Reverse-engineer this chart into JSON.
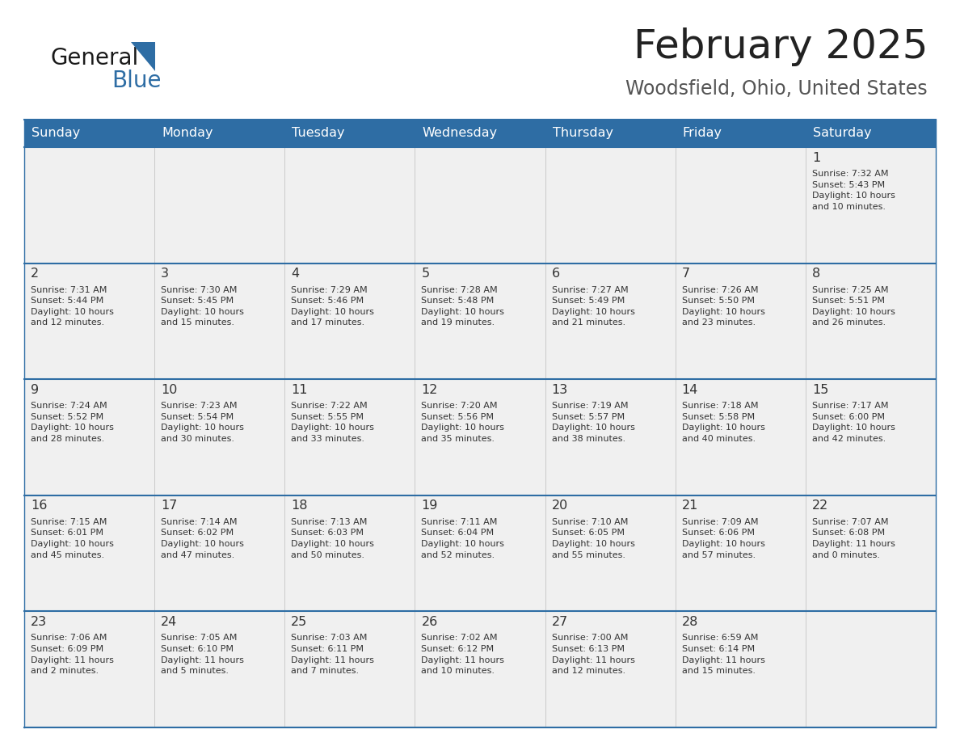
{
  "title": "February 2025",
  "subtitle": "Woodsfield, Ohio, United States",
  "days_of_week": [
    "Sunday",
    "Monday",
    "Tuesday",
    "Wednesday",
    "Thursday",
    "Friday",
    "Saturday"
  ],
  "header_bg": "#2E6DA4",
  "header_text": "#FFFFFF",
  "cell_bg": "#F0F0F0",
  "divider_color": "#2E6DA4",
  "cell_border_color": "#CCCCCC",
  "text_color": "#333333",
  "title_color": "#222222",
  "subtitle_color": "#555555",
  "logo_general_color": "#1a1a1a",
  "logo_blue_color": "#2E6DA4",
  "weeks": [
    [
      {
        "day": null,
        "info": null
      },
      {
        "day": null,
        "info": null
      },
      {
        "day": null,
        "info": null
      },
      {
        "day": null,
        "info": null
      },
      {
        "day": null,
        "info": null
      },
      {
        "day": null,
        "info": null
      },
      {
        "day": 1,
        "info": "Sunrise: 7:32 AM\nSunset: 5:43 PM\nDaylight: 10 hours\nand 10 minutes."
      }
    ],
    [
      {
        "day": 2,
        "info": "Sunrise: 7:31 AM\nSunset: 5:44 PM\nDaylight: 10 hours\nand 12 minutes."
      },
      {
        "day": 3,
        "info": "Sunrise: 7:30 AM\nSunset: 5:45 PM\nDaylight: 10 hours\nand 15 minutes."
      },
      {
        "day": 4,
        "info": "Sunrise: 7:29 AM\nSunset: 5:46 PM\nDaylight: 10 hours\nand 17 minutes."
      },
      {
        "day": 5,
        "info": "Sunrise: 7:28 AM\nSunset: 5:48 PM\nDaylight: 10 hours\nand 19 minutes."
      },
      {
        "day": 6,
        "info": "Sunrise: 7:27 AM\nSunset: 5:49 PM\nDaylight: 10 hours\nand 21 minutes."
      },
      {
        "day": 7,
        "info": "Sunrise: 7:26 AM\nSunset: 5:50 PM\nDaylight: 10 hours\nand 23 minutes."
      },
      {
        "day": 8,
        "info": "Sunrise: 7:25 AM\nSunset: 5:51 PM\nDaylight: 10 hours\nand 26 minutes."
      }
    ],
    [
      {
        "day": 9,
        "info": "Sunrise: 7:24 AM\nSunset: 5:52 PM\nDaylight: 10 hours\nand 28 minutes."
      },
      {
        "day": 10,
        "info": "Sunrise: 7:23 AM\nSunset: 5:54 PM\nDaylight: 10 hours\nand 30 minutes."
      },
      {
        "day": 11,
        "info": "Sunrise: 7:22 AM\nSunset: 5:55 PM\nDaylight: 10 hours\nand 33 minutes."
      },
      {
        "day": 12,
        "info": "Sunrise: 7:20 AM\nSunset: 5:56 PM\nDaylight: 10 hours\nand 35 minutes."
      },
      {
        "day": 13,
        "info": "Sunrise: 7:19 AM\nSunset: 5:57 PM\nDaylight: 10 hours\nand 38 minutes."
      },
      {
        "day": 14,
        "info": "Sunrise: 7:18 AM\nSunset: 5:58 PM\nDaylight: 10 hours\nand 40 minutes."
      },
      {
        "day": 15,
        "info": "Sunrise: 7:17 AM\nSunset: 6:00 PM\nDaylight: 10 hours\nand 42 minutes."
      }
    ],
    [
      {
        "day": 16,
        "info": "Sunrise: 7:15 AM\nSunset: 6:01 PM\nDaylight: 10 hours\nand 45 minutes."
      },
      {
        "day": 17,
        "info": "Sunrise: 7:14 AM\nSunset: 6:02 PM\nDaylight: 10 hours\nand 47 minutes."
      },
      {
        "day": 18,
        "info": "Sunrise: 7:13 AM\nSunset: 6:03 PM\nDaylight: 10 hours\nand 50 minutes."
      },
      {
        "day": 19,
        "info": "Sunrise: 7:11 AM\nSunset: 6:04 PM\nDaylight: 10 hours\nand 52 minutes."
      },
      {
        "day": 20,
        "info": "Sunrise: 7:10 AM\nSunset: 6:05 PM\nDaylight: 10 hours\nand 55 minutes."
      },
      {
        "day": 21,
        "info": "Sunrise: 7:09 AM\nSunset: 6:06 PM\nDaylight: 10 hours\nand 57 minutes."
      },
      {
        "day": 22,
        "info": "Sunrise: 7:07 AM\nSunset: 6:08 PM\nDaylight: 11 hours\nand 0 minutes."
      }
    ],
    [
      {
        "day": 23,
        "info": "Sunrise: 7:06 AM\nSunset: 6:09 PM\nDaylight: 11 hours\nand 2 minutes."
      },
      {
        "day": 24,
        "info": "Sunrise: 7:05 AM\nSunset: 6:10 PM\nDaylight: 11 hours\nand 5 minutes."
      },
      {
        "day": 25,
        "info": "Sunrise: 7:03 AM\nSunset: 6:11 PM\nDaylight: 11 hours\nand 7 minutes."
      },
      {
        "day": 26,
        "info": "Sunrise: 7:02 AM\nSunset: 6:12 PM\nDaylight: 11 hours\nand 10 minutes."
      },
      {
        "day": 27,
        "info": "Sunrise: 7:00 AM\nSunset: 6:13 PM\nDaylight: 11 hours\nand 12 minutes."
      },
      {
        "day": 28,
        "info": "Sunrise: 6:59 AM\nSunset: 6:14 PM\nDaylight: 11 hours\nand 15 minutes."
      },
      {
        "day": null,
        "info": null
      }
    ]
  ]
}
